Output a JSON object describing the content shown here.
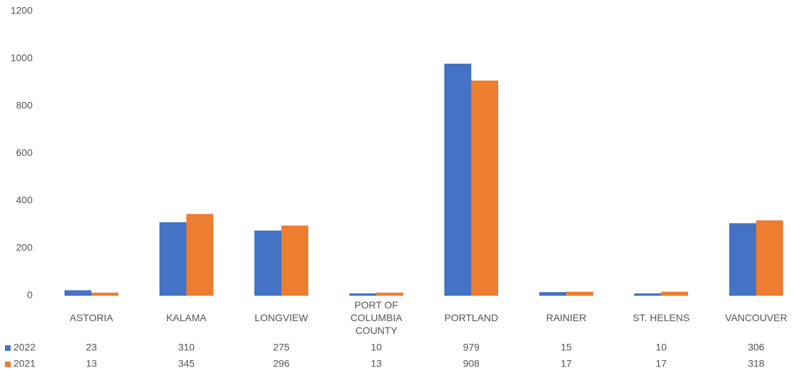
{
  "chart_data": {
    "type": "bar",
    "categories": [
      "ASTORIA",
      "KALAMA",
      "LONGVIEW",
      "PORT OF COLUMBIA COUNTY",
      "PORTLAND",
      "RAINIER",
      "ST. HELENS",
      "VANCOUVER"
    ],
    "series": [
      {
        "name": "2022",
        "color": "#4472c4",
        "values": [
          23,
          310,
          275,
          10,
          979,
          15,
          10,
          306
        ]
      },
      {
        "name": "2021",
        "color": "#ed7d31",
        "values": [
          13,
          345,
          296,
          13,
          908,
          17,
          17,
          318
        ]
      }
    ],
    "ylim": [
      0,
      1200
    ],
    "yticks": [
      0,
      200,
      400,
      600,
      800,
      1000,
      1200
    ],
    "grid": false
  }
}
